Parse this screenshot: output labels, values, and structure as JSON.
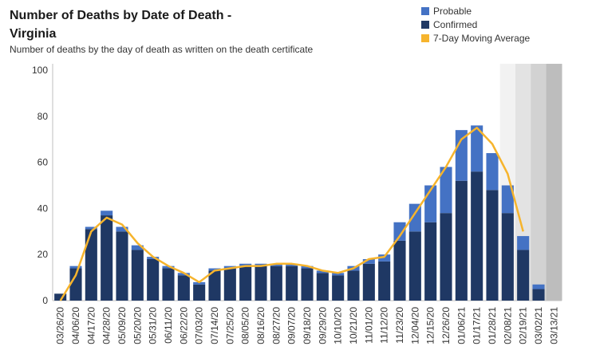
{
  "title": "Number of Deaths by Date of Death - Virginia",
  "subtitle": "Number of deaths by the day of death as written on the death certificate",
  "legend": [
    {
      "label": "Probable",
      "color": "#4472c4"
    },
    {
      "label": "Confirmed",
      "color": "#1f3864"
    },
    {
      "label": "7-Day Moving Average",
      "color": "#f6b42d"
    }
  ],
  "chart_data": {
    "type": "bar",
    "stacked": true,
    "ylim": [
      0,
      100
    ],
    "yticks": [
      0,
      20,
      40,
      60,
      80,
      100
    ],
    "grid": false,
    "legend_position": "top-right",
    "xtick_labels": [
      "03/26/20",
      "04/06/20",
      "04/17/20",
      "04/28/20",
      "05/09/20",
      "05/20/20",
      "05/31/20",
      "06/11/20",
      "06/22/20",
      "07/03/20",
      "07/14/20",
      "07/25/20",
      "08/05/20",
      "08/16/20",
      "08/27/20",
      "09/07/20",
      "09/18/20",
      "09/29/20",
      "10/10/20",
      "10/21/20",
      "11/01/20",
      "11/12/20",
      "11/23/20",
      "12/04/20",
      "12/15/20",
      "12/26/20",
      "01/06/21",
      "01/17/21",
      "01/28/21",
      "02/08/21",
      "02/19/21",
      "03/02/21",
      "03/13/21"
    ],
    "bar_dates": [
      "03/26/20",
      "04/06/20",
      "04/17/20",
      "04/28/20",
      "05/09/20",
      "05/20/20",
      "05/31/20",
      "06/11/20",
      "06/22/20",
      "07/03/20",
      "07/14/20",
      "07/25/20",
      "08/05/20",
      "08/16/20",
      "08/27/20",
      "09/07/20",
      "09/18/20",
      "09/29/20",
      "10/10/20",
      "10/21/20",
      "11/01/20",
      "11/12/20",
      "11/23/20",
      "12/04/20",
      "12/15/20",
      "12/26/20",
      "01/06/21",
      "01/17/21",
      "01/28/21",
      "02/08/21",
      "02/19/21",
      "03/02/21",
      "03/13/21"
    ],
    "series": [
      {
        "name": "Confirmed",
        "color": "#1f3864",
        "values": [
          3,
          14,
          31,
          37,
          30,
          22,
          18,
          14,
          11,
          7,
          13,
          14,
          15,
          15,
          15,
          15,
          14,
          12,
          11,
          13,
          16,
          17,
          26,
          30,
          34,
          38,
          52,
          56,
          48,
          38,
          22,
          5,
          0
        ]
      },
      {
        "name": "Probable",
        "color": "#4472c4",
        "values": [
          0,
          1,
          1,
          2,
          2,
          2,
          1,
          1,
          1,
          1,
          1,
          1,
          1,
          1,
          1,
          1,
          1,
          1,
          1,
          2,
          2,
          3,
          8,
          12,
          16,
          20,
          22,
          20,
          16,
          12,
          6,
          2,
          0
        ]
      },
      {
        "name": "7-Day Moving Average",
        "color": "#f6b42d",
        "type": "line",
        "values": [
          0,
          11,
          30,
          36,
          33,
          25,
          19,
          15,
          12,
          8,
          13,
          14,
          15,
          15,
          16,
          16,
          15,
          13,
          12,
          14,
          18,
          19,
          28,
          38,
          48,
          58,
          70,
          75,
          68,
          55,
          30,
          null,
          null
        ]
      }
    ],
    "shaded_region_start": "02/08/21"
  }
}
